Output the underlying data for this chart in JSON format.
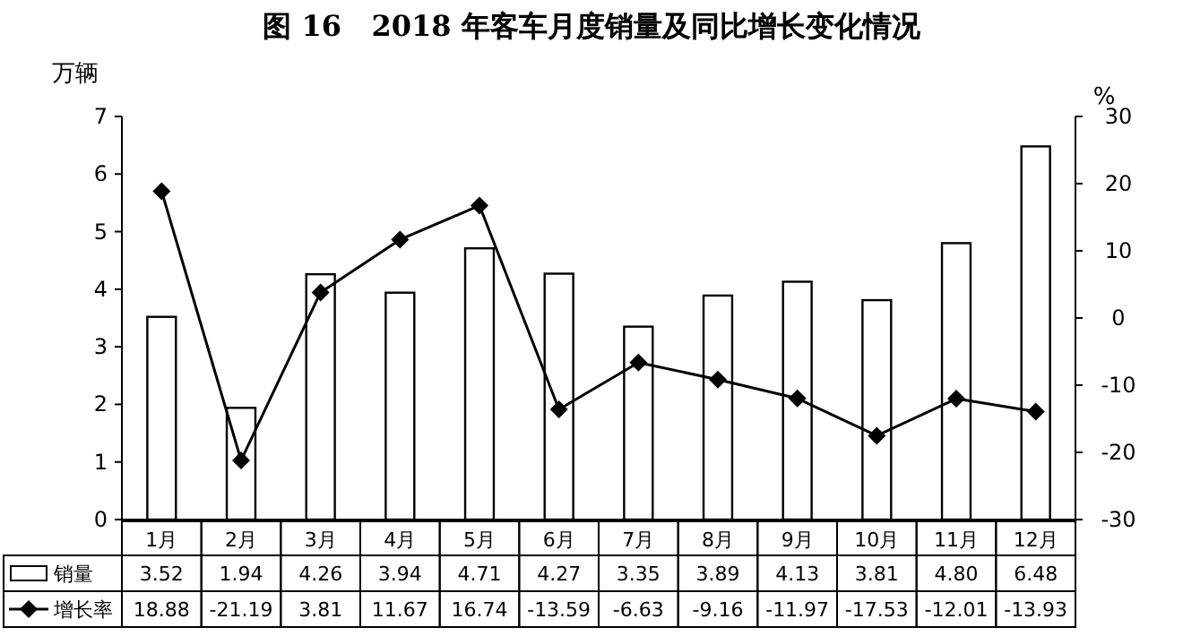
{
  "chart_data": {
    "type": "bar",
    "title": "图 16   2018 年客车月度销量及同比增长变化情况",
    "ylabel": "万辆",
    "y2label": "%",
    "categories": [
      "1月",
      "2月",
      "3月",
      "4月",
      "5月",
      "6月",
      "7月",
      "8月",
      "9月",
      "10月",
      "11月",
      "12月"
    ],
    "series": [
      {
        "name": "销量",
        "color": "#ffffff",
        "values": [
          3.52,
          1.94,
          4.26,
          3.94,
          4.71,
          4.27,
          3.35,
          3.89,
          4.13,
          3.81,
          4.8,
          6.48
        ],
        "value_labels": [
          "3.52",
          "1.94",
          "4.26",
          "3.94",
          "4.71",
          "4.27",
          "3.35",
          "3.89",
          "4.13",
          "3.81",
          "4.80",
          "6.48"
        ]
      },
      {
        "name": "增长率",
        "type": "line",
        "axis": "y2",
        "color": "#000000",
        "values": [
          18.88,
          -21.19,
          3.81,
          11.67,
          16.74,
          -13.59,
          -6.63,
          -9.16,
          -11.97,
          -17.53,
          -12.01,
          -13.93
        ],
        "value_labels": [
          "18.88",
          "-21.19",
          "3.81",
          "11.67",
          "16.74",
          "-13.59",
          "-6.63",
          "-9.16",
          "-11.97",
          "-17.53",
          "-12.01",
          "-13.93"
        ]
      }
    ],
    "ylim": [
      0,
      7
    ],
    "yticks": [
      0,
      1,
      2,
      3,
      4,
      5,
      6,
      7
    ],
    "y2lim": [
      -30,
      30
    ],
    "y2ticks": [
      -30,
      -20,
      -10,
      0,
      10,
      20,
      30
    ],
    "marker": "diamond",
    "legend": "bottom"
  }
}
